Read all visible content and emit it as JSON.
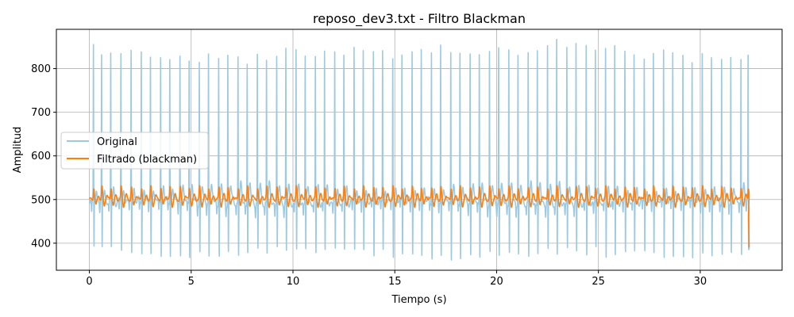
{
  "chart_data": {
    "type": "line",
    "title": "reposo_dev3.txt - Filtro Blackman",
    "xlabel": "Tiempo (s)",
    "ylabel": "Amplitud",
    "xlim": [
      -1.62,
      34.02
    ],
    "ylim": [
      338,
      890
    ],
    "xticks": [
      0,
      5,
      10,
      15,
      20,
      25,
      30
    ],
    "xtick_labels": [
      "0",
      "5",
      "10",
      "15",
      "20",
      "25",
      "30"
    ],
    "yticks": [
      400,
      500,
      600,
      700,
      800
    ],
    "ytick_labels": [
      "400",
      "500",
      "600",
      "700",
      "800"
    ],
    "grid": true,
    "legend_position": "center-left",
    "duration_s": 32.4,
    "beat_times_s": [
      0.2,
      0.6,
      1.05,
      1.55,
      2.05,
      2.55,
      3.0,
      3.5,
      3.95,
      4.45,
      4.9,
      5.4,
      5.85,
      6.35,
      6.8,
      7.3,
      7.75,
      8.25,
      8.7,
      9.2,
      9.65,
      10.15,
      10.6,
      11.1,
      11.55,
      12.05,
      12.5,
      13.0,
      13.45,
      13.95,
      14.4,
      14.9,
      15.35,
      15.85,
      16.3,
      16.8,
      17.25,
      17.75,
      18.2,
      18.7,
      19.15,
      19.65,
      20.1,
      20.6,
      21.05,
      21.55,
      22.0,
      22.5,
      22.95,
      23.45,
      23.9,
      24.4,
      24.85,
      25.35,
      25.8,
      26.3,
      26.75,
      27.25,
      27.7,
      28.2,
      28.65,
      29.15,
      29.6,
      30.1,
      30.55,
      31.05,
      31.5,
      32.0,
      32.35
    ],
    "beat_peaks": [
      848,
      820,
      826,
      832,
      838,
      845,
      825,
      835,
      830,
      833,
      828,
      820,
      838,
      835,
      836,
      833,
      820,
      829,
      822,
      825,
      840,
      843,
      824,
      820,
      838,
      826,
      822,
      844,
      830,
      840,
      839,
      820,
      834,
      838,
      843,
      846,
      856,
      848,
      847,
      838,
      843,
      844,
      851,
      852,
      834,
      839,
      848,
      845,
      866,
      843,
      848,
      851,
      836,
      838,
      850,
      829,
      823,
      820,
      826,
      847,
      838,
      831,
      820,
      837,
      827,
      833,
      830,
      832,
      829
    ],
    "beat_troughs": [
      385,
      378,
      384,
      375,
      378,
      376,
      372,
      378,
      372,
      375,
      376,
      378,
      373,
      371,
      377,
      374,
      378,
      380,
      376,
      378,
      372,
      378,
      372,
      370,
      377,
      374,
      378,
      375,
      372,
      370,
      378,
      368,
      378,
      372,
      374,
      366,
      370,
      370,
      368,
      376,
      376,
      376,
      372,
      377,
      368,
      368,
      372,
      376,
      370,
      374,
      368,
      364,
      376,
      360,
      366,
      368,
      376,
      375,
      368,
      370,
      365,
      372,
      372,
      376,
      375,
      378,
      378,
      382,
      386
    ],
    "series": [
      {
        "name": "Original",
        "color": "#9ecae1",
        "baseline": 495,
        "end_value": 385
      },
      {
        "name": "Filtrado (blackman)",
        "color": "#ff7f0e",
        "baseline": 500,
        "end_value": 390
      }
    ]
  }
}
